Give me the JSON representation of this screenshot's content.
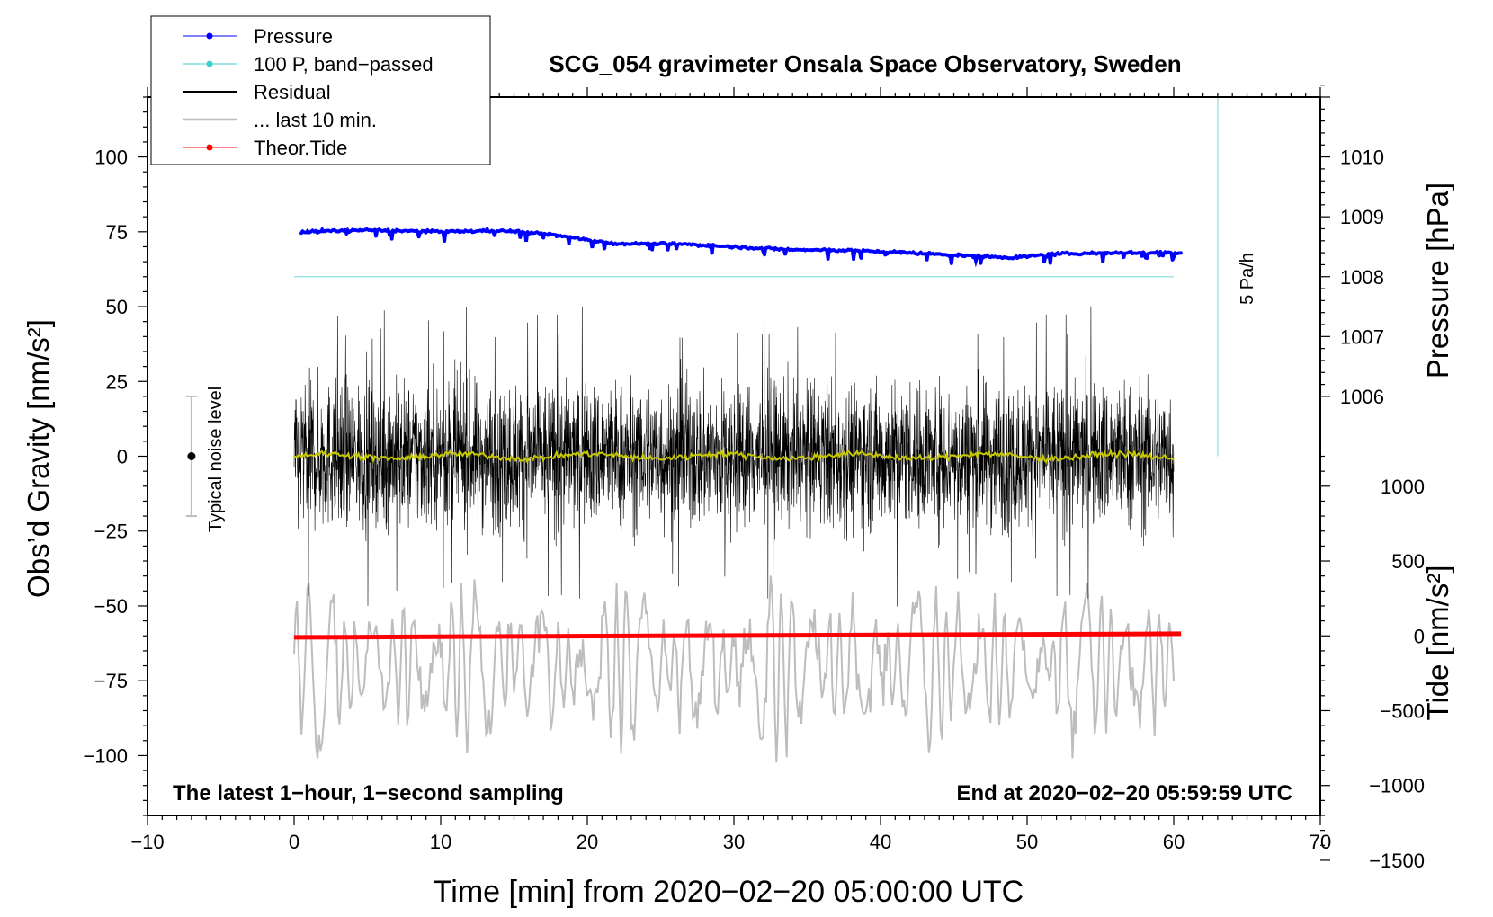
{
  "chart_data": {
    "type": "line",
    "title": "SCG_054 gravimeter Onsala Space Observatory, Sweden",
    "xlabel": "Time [min] from 2020−02−20 05:00:00 UTC",
    "ylabel_left": "Obs’d Gravity [nm/s²]",
    "ylabel_right_top": "Pressure [hPa]",
    "ylabel_right_bottom": "Tide [nm/s²]",
    "xlim": [
      -10,
      70
    ],
    "ylim": [
      -120,
      120
    ],
    "xticks": [
      -10,
      0,
      10,
      20,
      30,
      40,
      50,
      60,
      70
    ],
    "xtick_labels": [
      "−10",
      "0",
      "10",
      "20",
      "30",
      "40",
      "50",
      "60",
      "70"
    ],
    "yticks_left": [
      -100,
      -75,
      -50,
      -25,
      0,
      25,
      50,
      75,
      100
    ],
    "ytick_labels_left": [
      "−100",
      "−75",
      "−50",
      "−25",
      "0",
      "25",
      "50",
      "75",
      "100"
    ],
    "pressure_axis": {
      "ticks": [
        1006,
        1007,
        1008,
        1009,
        1010
      ],
      "labels": [
        "1006",
        "1007",
        "1008",
        "1009",
        "1010"
      ],
      "left_equiv_at_1006": 20,
      "left_per_hPa": 20
    },
    "tide_axis": {
      "ticks": [
        -1500,
        -1000,
        -500,
        0,
        500,
        1000
      ],
      "labels": [
        "−1500",
        "−1000",
        "−500",
        "0",
        "500",
        "1000"
      ],
      "left_equiv_at_0": -60,
      "left_per_unit": 0.05
    },
    "pressure_series_hPa": {
      "x": [
        0.5,
        5,
        10,
        14,
        17,
        20,
        22,
        26,
        30,
        34,
        38,
        42,
        46,
        49,
        52,
        56,
        60.5
      ],
      "y": [
        1008.75,
        1008.78,
        1008.75,
        1008.77,
        1008.72,
        1008.62,
        1008.55,
        1008.55,
        1008.5,
        1008.45,
        1008.44,
        1008.4,
        1008.35,
        1008.32,
        1008.38,
        1008.4,
        1008.4
      ]
    },
    "band_passed_pressure_line_left_units": 60,
    "band_passed_x_range": [
      0,
      60
    ],
    "residual_amplitude_nm_s2": 22,
    "residual_peak_nm_s2": 51,
    "residual_mean_nm_s2": 0,
    "last_10min_amplitude_nm_s2": 20,
    "last_10min_offset_nm_s2": -70,
    "theoretical_tide_nm_s2": {
      "x": [
        0,
        60.5
      ],
      "y": [
        -60.5,
        -59.3
      ]
    },
    "noise_bar": {
      "x": -7,
      "center": 0,
      "low": -20,
      "high": 20,
      "label": "Typical noise level"
    },
    "rate_bar": {
      "x": 63,
      "from": 0,
      "to": 120,
      "label": "5 Pa/h"
    },
    "legend": [
      {
        "label": "Pressure",
        "color": "#0000ff",
        "marker": true,
        "width": 1
      },
      {
        "label": "100 P, band−passed",
        "color": "#3ccfcf",
        "marker": true,
        "width": 1
      },
      {
        "label": "Residual",
        "color": "#000000",
        "marker": false,
        "width": 2
      },
      {
        "label": "... last 10 min.",
        "color": "#bdbdbd",
        "marker": false,
        "width": 2.5
      },
      {
        "label": "Theor.Tide",
        "color": "#ff0000",
        "marker": true,
        "width": 1
      }
    ],
    "footer_left": "The latest 1−hour, 1−second sampling",
    "footer_right": "End at 2020−02−20 05:59:59 UTC",
    "colors": {
      "pressure": "#0000ff",
      "band_passed": "#9fe4e4",
      "residual": "#000000",
      "residual_mean": "#c8c800",
      "last10": "#bdbdbd",
      "tide": "#ff0000",
      "rate": "#9fe4e4",
      "noise": "#bdbdbd"
    }
  }
}
